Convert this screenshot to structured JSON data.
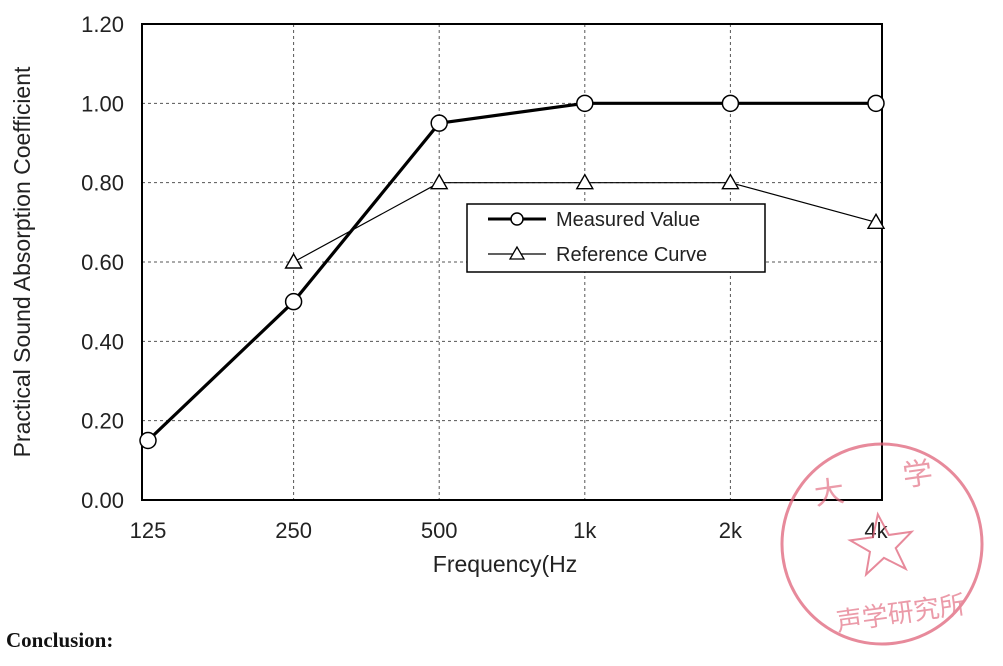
{
  "chart_data": {
    "type": "line",
    "x": [
      "125",
      "250",
      "500",
      "1k",
      "2k",
      "4k"
    ],
    "ylabel": "Practical Sound Absorption Coefficient",
    "xlabel": "Frequency(Hz",
    "ylim": [
      0.0,
      1.2
    ],
    "yticks": [
      "0.00",
      "0.20",
      "0.40",
      "0.60",
      "0.80",
      "1.00",
      "1.20"
    ],
    "grid": true,
    "legend_position": "center-right",
    "series": [
      {
        "name": "Measured Value",
        "marker": "circle",
        "values": [
          0.15,
          0.5,
          0.95,
          1.0,
          1.0,
          1.0
        ],
        "color": "#000000"
      },
      {
        "name": "Reference Curve",
        "marker": "triangle",
        "values": [
          null,
          0.6,
          0.8,
          0.8,
          0.8,
          0.7
        ],
        "color": "#000000"
      }
    ]
  },
  "footer": {
    "conclusion_label": "Conclusion:"
  },
  "stamp": {
    "color": "#e0637a",
    "text_top": "大学",
    "text_bottom": "声学研究所"
  }
}
